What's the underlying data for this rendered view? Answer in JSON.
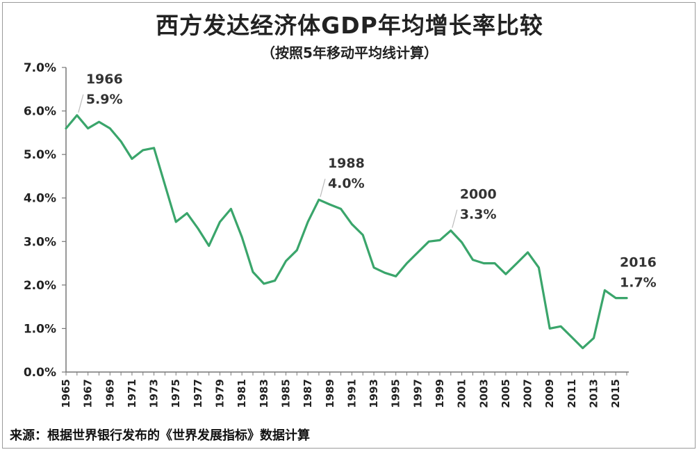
{
  "chart_data": {
    "type": "line",
    "title": "西方发达经济体GDP年均增长率比较",
    "subtitle": "（按照5年移动平均线计算）",
    "source": "来源：根据世界银行发布的《世界发展指标》数据计算",
    "xlabel": "",
    "ylabel": "",
    "ylim": [
      0,
      7
    ],
    "y_ticks": [
      "0.0%",
      "1.0%",
      "2.0%",
      "3.0%",
      "4.0%",
      "5.0%",
      "6.0%",
      "7.0%"
    ],
    "x_ticks": [
      "1965",
      "1967",
      "1969",
      "1971",
      "1973",
      "1975",
      "1977",
      "1979",
      "1981",
      "1983",
      "1985",
      "1987",
      "1989",
      "1991",
      "1993",
      "1995",
      "1997",
      "1999",
      "2001",
      "2003",
      "2005",
      "2007",
      "2009",
      "2011",
      "2013",
      "2015"
    ],
    "grid": false,
    "legend": "none",
    "line_color": "#3aa56b",
    "x": [
      1965,
      1966,
      1967,
      1968,
      1969,
      1970,
      1971,
      1972,
      1973,
      1974,
      1975,
      1976,
      1977,
      1978,
      1979,
      1980,
      1981,
      1982,
      1983,
      1984,
      1985,
      1986,
      1987,
      1988,
      1989,
      1990,
      1991,
      1992,
      1993,
      1994,
      1995,
      1996,
      1997,
      1998,
      1999,
      2000,
      2001,
      2002,
      2003,
      2004,
      2005,
      2006,
      2007,
      2008,
      2009,
      2010,
      2011,
      2012,
      2013,
      2014,
      2015,
      2016
    ],
    "values": [
      5.6,
      5.9,
      5.6,
      5.75,
      5.6,
      5.3,
      4.9,
      5.1,
      5.15,
      4.3,
      3.45,
      3.65,
      3.3,
      2.9,
      3.45,
      3.75,
      3.1,
      2.3,
      2.03,
      2.1,
      2.55,
      2.8,
      3.45,
      3.96,
      3.85,
      3.75,
      3.4,
      3.15,
      2.4,
      2.28,
      2.2,
      2.5,
      2.75,
      3.0,
      3.03,
      3.25,
      2.98,
      2.58,
      2.5,
      2.5,
      2.25,
      2.5,
      2.75,
      2.4,
      1.0,
      1.05,
      0.8,
      0.55,
      0.78,
      1.88,
      1.7,
      1.7
    ],
    "annotations": [
      {
        "year": 1966,
        "year_label": "1966",
        "value_label": "5.9%"
      },
      {
        "year": 1988,
        "year_label": "1988",
        "value_label": "4.0%"
      },
      {
        "year": 2000,
        "year_label": "2000",
        "value_label": "3.3%"
      },
      {
        "year": 2016,
        "year_label": "2016",
        "value_label": "1.7%"
      }
    ]
  }
}
